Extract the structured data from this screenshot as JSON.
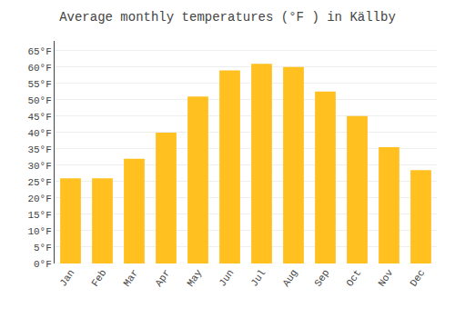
{
  "chart_data": {
    "type": "bar",
    "title": "Average monthly temperatures (°F ) in Källby",
    "categories": [
      "Jan",
      "Feb",
      "Mar",
      "Apr",
      "May",
      "Jun",
      "Jul",
      "Aug",
      "Sep",
      "Oct",
      "Nov",
      "Dec"
    ],
    "values": [
      26,
      26,
      32,
      40,
      51,
      59,
      61,
      60,
      52.5,
      45,
      35.5,
      28.5
    ],
    "color": "#FFC020",
    "ylim": [
      0,
      68
    ],
    "yticks": [
      {
        "value": 0,
        "label": "0°F"
      },
      {
        "value": 5,
        "label": "5°F"
      },
      {
        "value": 10,
        "label": "10°F"
      },
      {
        "value": 15,
        "label": "15°F"
      },
      {
        "value": 20,
        "label": "20°F"
      },
      {
        "value": 25,
        "label": "25°F"
      },
      {
        "value": 30,
        "label": "30°F"
      },
      {
        "value": 35,
        "label": "35°F"
      },
      {
        "value": 40,
        "label": "40°F"
      },
      {
        "value": 45,
        "label": "45°F"
      },
      {
        "value": 50,
        "label": "50°F"
      },
      {
        "value": 55,
        "label": "55°F"
      },
      {
        "value": 60,
        "label": "60°F"
      },
      {
        "value": 65,
        "label": "65°F"
      }
    ],
    "grid": true
  }
}
